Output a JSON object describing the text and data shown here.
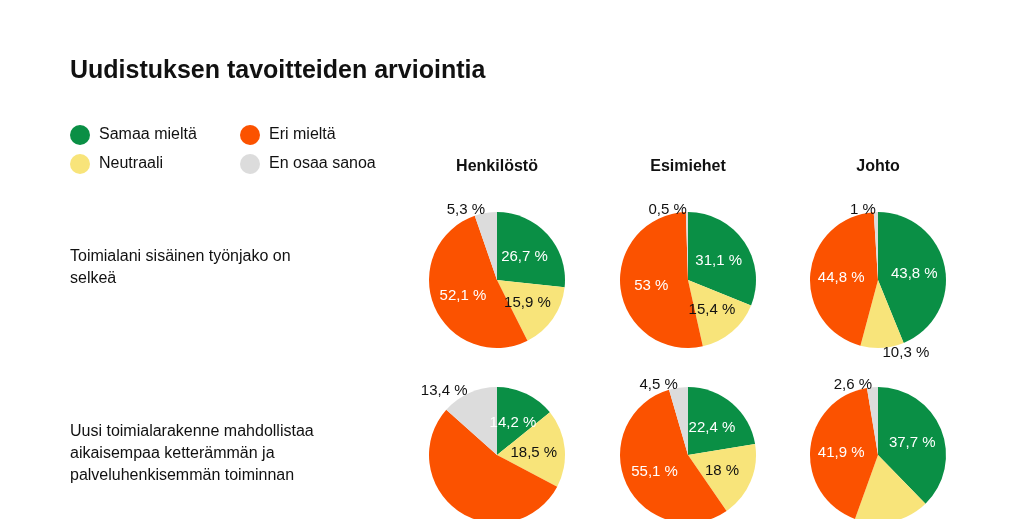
{
  "chart_data": [
    {
      "type": "other",
      "title": "Uudistuksen tavoitteiden arviointia"
    },
    {
      "type": "pie",
      "title": "Henkilöstö",
      "ylabel": "Toimialani sisäinen työnjako on selkeä",
      "legend": "top left",
      "categories": [
        "Samaa mieltä",
        "Neutraali",
        "Eri mieltä",
        "En osaa sanoa"
      ],
      "values": [
        26.7,
        15.9,
        52.1,
        5.3
      ],
      "value_labels": [
        "26,7 %",
        "15,9 %",
        "52,1 %",
        "5,3 %"
      ],
      "colors": [
        "#0a8f45",
        "#f8e47a",
        "#fb5200",
        "#dcdcdc"
      ]
    },
    {
      "type": "pie",
      "title": "Esimiehet",
      "values": [
        31.1,
        15.4,
        53,
        0.5
      ],
      "value_labels": [
        "31,1 %",
        "15,4 %",
        "53 %",
        "0,5 %"
      ],
      "colors": [
        "#0a8f45",
        "#f8e47a",
        "#fb5200",
        "#dcdcdc"
      ]
    },
    {
      "type": "pie",
      "title": "Johto",
      "values": [
        43.8,
        10.3,
        44.8,
        1
      ],
      "value_labels": [
        "43,8 %",
        "10,3 %",
        "44,8 %",
        "1 %"
      ],
      "colors": [
        "#0a8f45",
        "#f8e47a",
        "#fb5200",
        "#dcdcdc"
      ]
    },
    {
      "type": "pie",
      "ylabel": "Uusi toimialarakenne mahdollistaa aikaisempaa ketterämmän ja palveluhenkisemmän toiminnan",
      "values": [
        14.2,
        18.5,
        53.9,
        13.4
      ],
      "value_labels": [
        "14,2 %",
        "18,5 %",
        null,
        "13,4 %"
      ],
      "colors": [
        "#0a8f45",
        "#f8e47a",
        "#fb5200",
        "#dcdcdc"
      ]
    },
    {
      "type": "pie",
      "values": [
        22.4,
        18,
        55.1,
        4.5
      ],
      "value_labels": [
        "22,4 %",
        "18 %",
        "55,1 %",
        "4,5 %"
      ],
      "colors": [
        "#0a8f45",
        "#f8e47a",
        "#fb5200",
        "#dcdcdc"
      ]
    },
    {
      "type": "pie",
      "values": [
        37.7,
        17.8,
        41.9,
        2.6
      ],
      "value_labels": [
        "37,7 %",
        null,
        "41,9 %",
        "2,6 %"
      ],
      "colors": [
        "#0a8f45",
        "#f8e47a",
        "#fb5200",
        "#dcdcdc"
      ]
    }
  ]
}
